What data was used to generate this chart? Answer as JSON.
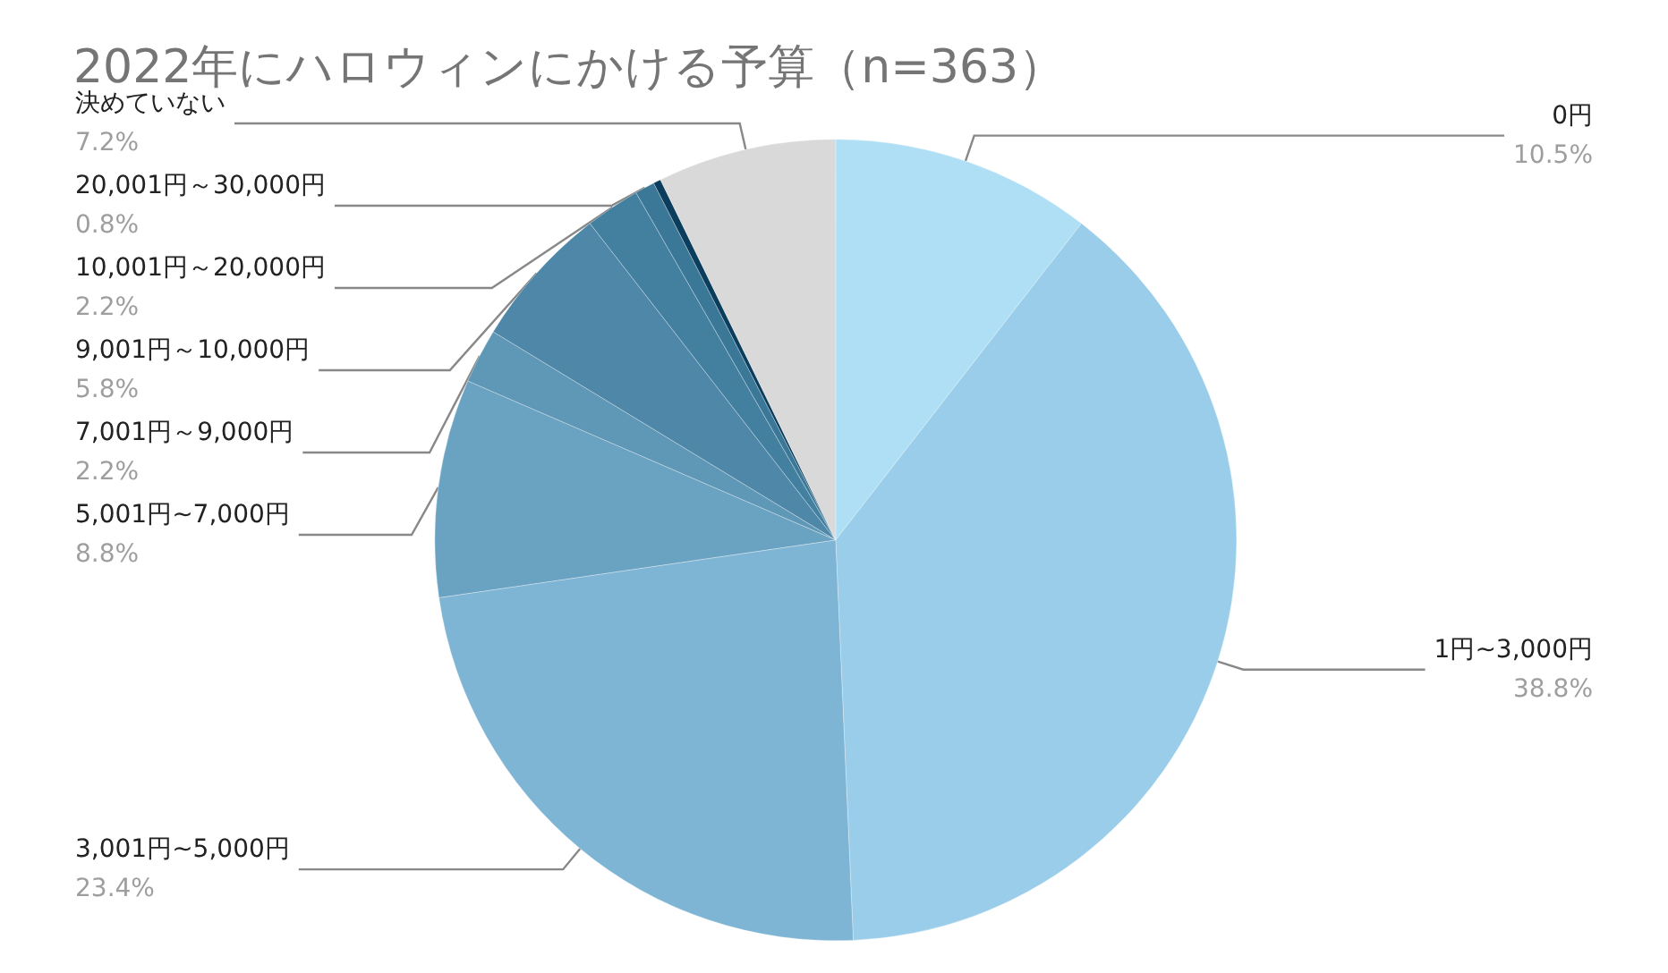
{
  "chart_data": {
    "type": "pie",
    "title": "2022年にハロウィンにかける予算（n=363）",
    "categories": [
      "0円",
      "1円~3,000円",
      "3,001円~5,000円",
      "5,001円~7,000円",
      "7,001円～9,000円",
      "9,001円～10,000円",
      "10,001円～20,000円",
      "20,001円～30,000円",
      null,
      "決めていない"
    ],
    "values": [
      10.5,
      38.8,
      23.4,
      8.8,
      2.2,
      5.8,
      2.2,
      0.8,
      0.3,
      7.2
    ],
    "value_labels": [
      "10.5%",
      "38.8%",
      "23.4%",
      "8.8%",
      "2.2%",
      "5.8%",
      "2.2%",
      "0.8%",
      null,
      "7.2%"
    ],
    "colors": [
      "#aedff5",
      "#99cde9",
      "#7fb5d4",
      "#6aa3c2",
      "#5f97b6",
      "#4e87a7",
      "#43809f",
      "#3b7898",
      "#0b3d5c",
      "#d9d9d9"
    ],
    "legend": false
  }
}
